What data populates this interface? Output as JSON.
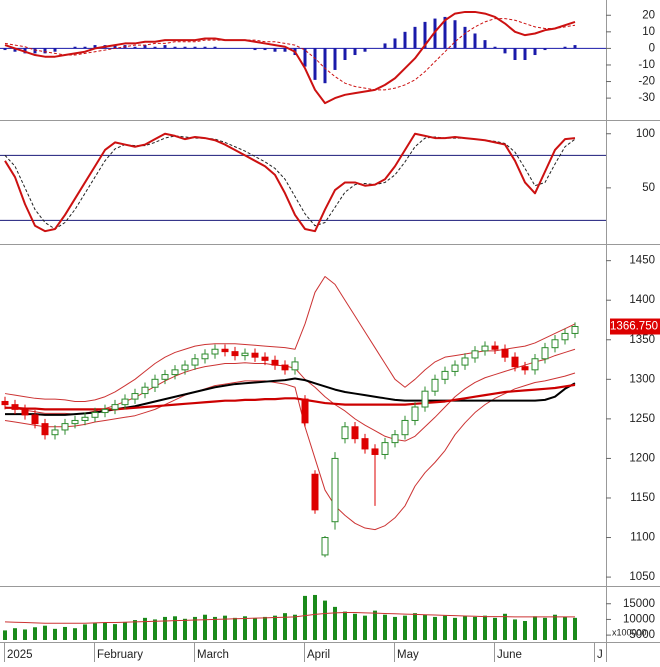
{
  "chart_data": [
    {
      "type": "line",
      "ylim": [
        -42,
        28
      ],
      "yticks": [
        20,
        10,
        0,
        -10,
        -20,
        -30
      ],
      "series": [
        {
          "style": "bar",
          "color": "#1a1aaa",
          "values": [
            -1,
            -2,
            -3,
            -3,
            -3,
            -2,
            0,
            1,
            1,
            2,
            2,
            2,
            2,
            1,
            2,
            1,
            2,
            1,
            1,
            1,
            1,
            1,
            0,
            0,
            0,
            -1,
            -1,
            -2,
            -2,
            -4,
            -11,
            -19,
            -21,
            -13,
            -7,
            -4,
            -2,
            0,
            3,
            6,
            10,
            13,
            16,
            18,
            19,
            17,
            13,
            9,
            5,
            1,
            -3,
            -7,
            -7,
            -4,
            -1,
            0,
            1,
            2,
            null,
            null
          ]
        },
        {
          "style": "dashed",
          "color": "#cc1111",
          "values": [
            3,
            2,
            1,
            -1,
            -2,
            -3,
            -4,
            -4,
            -3,
            -2,
            -1,
            0,
            1,
            2,
            2,
            3,
            3,
            4,
            4,
            4,
            5,
            5,
            5,
            5,
            5,
            5,
            4,
            4,
            3,
            2,
            -1,
            -6,
            -12,
            -17,
            -21,
            -23,
            -24,
            -25,
            -25,
            -24,
            -22,
            -19,
            -14,
            -8,
            -2,
            4,
            9,
            13,
            16,
            18,
            18,
            17,
            15,
            13,
            12,
            12,
            13,
            14,
            null,
            null
          ]
        },
        {
          "style": "line",
          "color": "#cc1111",
          "values": [
            2,
            0,
            -2,
            -4,
            -5,
            -5,
            -4,
            -3,
            -2,
            0,
            1,
            2,
            3,
            3,
            4,
            4,
            5,
            5,
            5,
            5,
            6,
            6,
            5,
            5,
            5,
            4,
            3,
            2,
            1,
            -2,
            -12,
            -25,
            -33,
            -30,
            -28,
            -27,
            -26,
            -25,
            -22,
            -18,
            -12,
            -6,
            2,
            10,
            17,
            21,
            22,
            22,
            21,
            19,
            15,
            10,
            8,
            9,
            11,
            12,
            14,
            16,
            null,
            null
          ]
        }
      ]
    },
    {
      "type": "line",
      "ylim": [
        0,
        109
      ],
      "yticks": [
        100,
        50
      ],
      "levels": [
        80,
        20
      ],
      "level_color": "#1a1a7a",
      "series": [
        {
          "style": "dashed",
          "color": "#222222",
          "values": [
            80,
            70,
            50,
            30,
            18,
            12,
            18,
            30,
            45,
            60,
            75,
            86,
            90,
            89,
            89,
            92,
            96,
            98,
            97,
            96,
            96,
            95,
            92,
            88,
            84,
            79,
            74,
            68,
            58,
            42,
            26,
            15,
            18,
            32,
            46,
            53,
            54,
            53,
            55,
            62,
            74,
            88,
            96,
            97,
            96,
            96,
            96,
            95,
            94,
            93,
            91,
            83,
            68,
            52,
            55,
            72,
            88,
            95,
            null,
            null
          ]
        },
        {
          "style": "line",
          "color": "#cc1111",
          "values": [
            75,
            60,
            35,
            15,
            10,
            12,
            25,
            40,
            55,
            70,
            85,
            92,
            90,
            88,
            90,
            95,
            100,
            98,
            95,
            97,
            96,
            94,
            90,
            85,
            80,
            75,
            70,
            62,
            45,
            25,
            12,
            10,
            30,
            48,
            55,
            55,
            52,
            53,
            58,
            70,
            85,
            100,
            98,
            96,
            96,
            97,
            96,
            95,
            94,
            92,
            90,
            75,
            55,
            45,
            65,
            85,
            95,
            96,
            null,
            null
          ]
        }
      ]
    },
    {
      "type": "candlestick",
      "ylim": [
        1040,
        1466
      ],
      "yticks": [
        1450,
        1400,
        1350,
        1300,
        1250,
        1200,
        1150,
        1100,
        1050
      ],
      "up_color": "#2e8b2e",
      "down_color": "#dd0000",
      "open": [
        1272,
        1268,
        1262,
        1255,
        1244,
        1230,
        1236,
        1244,
        1248,
        1252,
        1258,
        1262,
        1268,
        1275,
        1282,
        1290,
        1300,
        1306,
        1312,
        1318,
        1326,
        1332,
        1338,
        1335,
        1330,
        1333,
        1328,
        1324,
        1318,
        1312,
        1275,
        1180,
        1078,
        1120,
        1225,
        1240,
        1225,
        1212,
        1205,
        1220,
        1230,
        1248,
        1265,
        1285,
        1300,
        1310,
        1318,
        1327,
        1336,
        1342,
        1338,
        1328,
        1316,
        1312,
        1326,
        1340,
        1350,
        1358,
        null,
        null
      ],
      "high": [
        1278,
        1274,
        1268,
        1261,
        1250,
        1242,
        1250,
        1254,
        1258,
        1264,
        1268,
        1274,
        1281,
        1288,
        1296,
        1306,
        1312,
        1318,
        1324,
        1332,
        1338,
        1344,
        1344,
        1341,
        1339,
        1339,
        1334,
        1330,
        1324,
        1328,
        1280,
        1185,
        1102,
        1208,
        1246,
        1246,
        1231,
        1218,
        1226,
        1236,
        1254,
        1271,
        1291,
        1306,
        1316,
        1324,
        1333,
        1342,
        1348,
        1348,
        1344,
        1334,
        1322,
        1332,
        1346,
        1356,
        1364,
        1372,
        null,
        null
      ],
      "low": [
        1262,
        1256,
        1249,
        1238,
        1224,
        1224,
        1230,
        1238,
        1242,
        1246,
        1252,
        1256,
        1262,
        1269,
        1276,
        1284,
        1294,
        1300,
        1306,
        1312,
        1320,
        1326,
        1329,
        1324,
        1324,
        1322,
        1318,
        1312,
        1306,
        1306,
        1240,
        1130,
        1075,
        1110,
        1219,
        1219,
        1206,
        1140,
        1199,
        1214,
        1224,
        1242,
        1259,
        1279,
        1294,
        1304,
        1312,
        1321,
        1330,
        1332,
        1322,
        1310,
        1306,
        1306,
        1320,
        1334,
        1344,
        1352,
        null,
        null
      ],
      "close": [
        1268,
        1262,
        1255,
        1244,
        1230,
        1236,
        1244,
        1248,
        1252,
        1258,
        1262,
        1268,
        1275,
        1282,
        1290,
        1300,
        1306,
        1312,
        1318,
        1326,
        1332,
        1338,
        1335,
        1330,
        1333,
        1328,
        1324,
        1318,
        1312,
        1322,
        1245,
        1135,
        1100,
        1200,
        1240,
        1225,
        1212,
        1205,
        1220,
        1230,
        1248,
        1265,
        1285,
        1300,
        1310,
        1318,
        1327,
        1336,
        1342,
        1338,
        1328,
        1316,
        1312,
        1326,
        1340,
        1350,
        1358,
        1366.75,
        null,
        null
      ],
      "last_price": {
        "value": 1366.75,
        "label": "1366.750"
      },
      "last_price_color": "#dd0000",
      "series": [
        {
          "style": "line",
          "color": "#cc3333",
          "width": 1,
          "values": [
            1282,
            1280,
            1278,
            1276,
            1275,
            1275,
            1274,
            1272,
            1272,
            1274,
            1278,
            1284,
            1292,
            1300,
            1310,
            1320,
            1328,
            1334,
            1338,
            1342,
            1344,
            1345,
            1345,
            1345,
            1344,
            1343,
            1342,
            1341,
            1340,
            1338,
            1370,
            1410,
            1430,
            1420,
            1400,
            1380,
            1360,
            1340,
            1320,
            1300,
            1290,
            1300,
            1312,
            1322,
            1328,
            1330,
            1332,
            1334,
            1336,
            1336,
            1338,
            1340,
            1342,
            1346,
            1352,
            1358,
            1364,
            1370,
            null,
            null
          ]
        },
        {
          "style": "line",
          "color": "#cc3333",
          "width": 1,
          "values": [
            1265,
            1263,
            1261,
            1259,
            1257,
            1257,
            1257,
            1256,
            1257,
            1260,
            1263,
            1267,
            1272,
            1277,
            1284,
            1291,
            1298,
            1304,
            1309,
            1313,
            1316,
            1318,
            1320,
            1320,
            1321,
            1320,
            1320,
            1318,
            1317,
            1314,
            1300,
            1290,
            1278,
            1268,
            1260,
            1250,
            1242,
            1235,
            1228,
            1224,
            1222,
            1228,
            1240,
            1252,
            1265,
            1278,
            1288,
            1296,
            1302,
            1306,
            1310,
            1314,
            1318,
            1322,
            1325,
            1330,
            1334,
            1338,
            null,
            null
          ]
        },
        {
          "style": "line",
          "color": "#cc3333",
          "width": 1,
          "values": [
            1248,
            1246,
            1244,
            1242,
            1240,
            1240,
            1240,
            1241,
            1243,
            1246,
            1248,
            1250,
            1252,
            1254,
            1258,
            1262,
            1268,
            1274,
            1280,
            1284,
            1288,
            1292,
            1294,
            1296,
            1298,
            1298,
            1298,
            1296,
            1294,
            1290,
            1240,
            1200,
            1160,
            1140,
            1128,
            1118,
            1112,
            1110,
            1115,
            1125,
            1140,
            1165,
            1182,
            1195,
            1210,
            1230,
            1245,
            1258,
            1268,
            1276,
            1282,
            1288,
            1292,
            1296,
            1298,
            1301,
            1304,
            1308,
            null,
            null
          ]
        },
        {
          "style": "line",
          "color": "#000000",
          "width": 2,
          "values": [
            1256,
            1256,
            1256,
            1256,
            1255,
            1255,
            1255,
            1256,
            1257,
            1258,
            1260,
            1262,
            1264,
            1266,
            1269,
            1272,
            1275,
            1278,
            1281,
            1284,
            1287,
            1290,
            1292,
            1294,
            1295,
            1296,
            1297,
            1298,
            1299,
            1301,
            1299,
            1295,
            1291,
            1287,
            1284,
            1282,
            1280,
            1278,
            1276,
            1274,
            1273,
            1273,
            1273,
            1273,
            1273,
            1273,
            1273,
            1273,
            1273,
            1273,
            1273,
            1273,
            1273,
            1273,
            1274,
            1278,
            1288,
            1295,
            null,
            null
          ]
        },
        {
          "style": "line",
          "color": "#cc0000",
          "width": 2.2,
          "values": [
            1264,
            1264,
            1263,
            1263,
            1262,
            1262,
            1262,
            1262,
            1262,
            1262,
            1262,
            1262,
            1263,
            1264,
            1265,
            1266,
            1267,
            1268,
            1269,
            1270,
            1271,
            1272,
            1273,
            1273,
            1274,
            1274,
            1275,
            1275,
            1276,
            1276,
            1274,
            1272,
            1270,
            1269,
            1268,
            1268,
            1268,
            1268,
            1268,
            1268,
            1268,
            1269,
            1270,
            1271,
            1272,
            1274,
            1276,
            1278,
            1280,
            1282,
            1284,
            1285,
            1286,
            1287,
            1288,
            1289,
            1291,
            1293,
            null,
            null
          ]
        }
      ]
    },
    {
      "type": "bar",
      "ylim": [
        3440,
        19700
      ],
      "yticks": [
        15000,
        10000,
        5000
      ],
      "unit_label": "x100000",
      "color": "#1a8a1a",
      "categories": [
        "2025",
        null,
        null,
        null,
        null,
        null,
        null,
        null,
        null,
        "February",
        null,
        null,
        null,
        null,
        null,
        null,
        null,
        null,
        null,
        "March",
        null,
        null,
        null,
        null,
        null,
        null,
        null,
        null,
        null,
        null,
        "April",
        null,
        null,
        null,
        null,
        null,
        null,
        null,
        null,
        "May",
        null,
        null,
        null,
        null,
        null,
        null,
        null,
        null,
        null,
        "June",
        null,
        null,
        null,
        null,
        null,
        null,
        null,
        null,
        null,
        "J"
      ],
      "values": [
        6500,
        7200,
        6800,
        7500,
        8000,
        7000,
        7600,
        7200,
        8400,
        8800,
        9000,
        8500,
        9200,
        9800,
        10500,
        10000,
        10800,
        11000,
        10200,
        10800,
        11500,
        10800,
        11200,
        10500,
        11000,
        10400,
        10800,
        11200,
        12000,
        11500,
        17500,
        17800,
        16000,
        14000,
        12500,
        11800,
        11200,
        12800,
        11500,
        10800,
        11200,
        12000,
        11500,
        10800,
        11200,
        10500,
        11000,
        10800,
        11200,
        10500,
        11800,
        10000,
        9500,
        11000,
        10500,
        11500,
        10800,
        10500,
        null,
        null
      ],
      "series": [
        {
          "style": "line",
          "color": "#cc3333",
          "width": 1,
          "values": [
            9200,
            9100,
            9000,
            8900,
            8800,
            8800,
            8800,
            8800,
            8800,
            8900,
            9000,
            9000,
            9100,
            9200,
            9300,
            9400,
            9500,
            9600,
            9700,
            9800,
            9900,
            10000,
            10100,
            10200,
            10300,
            10400,
            10500,
            10600,
            10700,
            10800,
            11200,
            11600,
            11900,
            12100,
            12200,
            12200,
            12100,
            12000,
            11900,
            11800,
            11700,
            11600,
            11500,
            11400,
            11300,
            11200,
            11100,
            11000,
            10900,
            10900,
            10900,
            10800,
            10800,
            10800,
            10800,
            10800,
            10800,
            10800,
            null,
            null
          ]
        }
      ]
    }
  ]
}
